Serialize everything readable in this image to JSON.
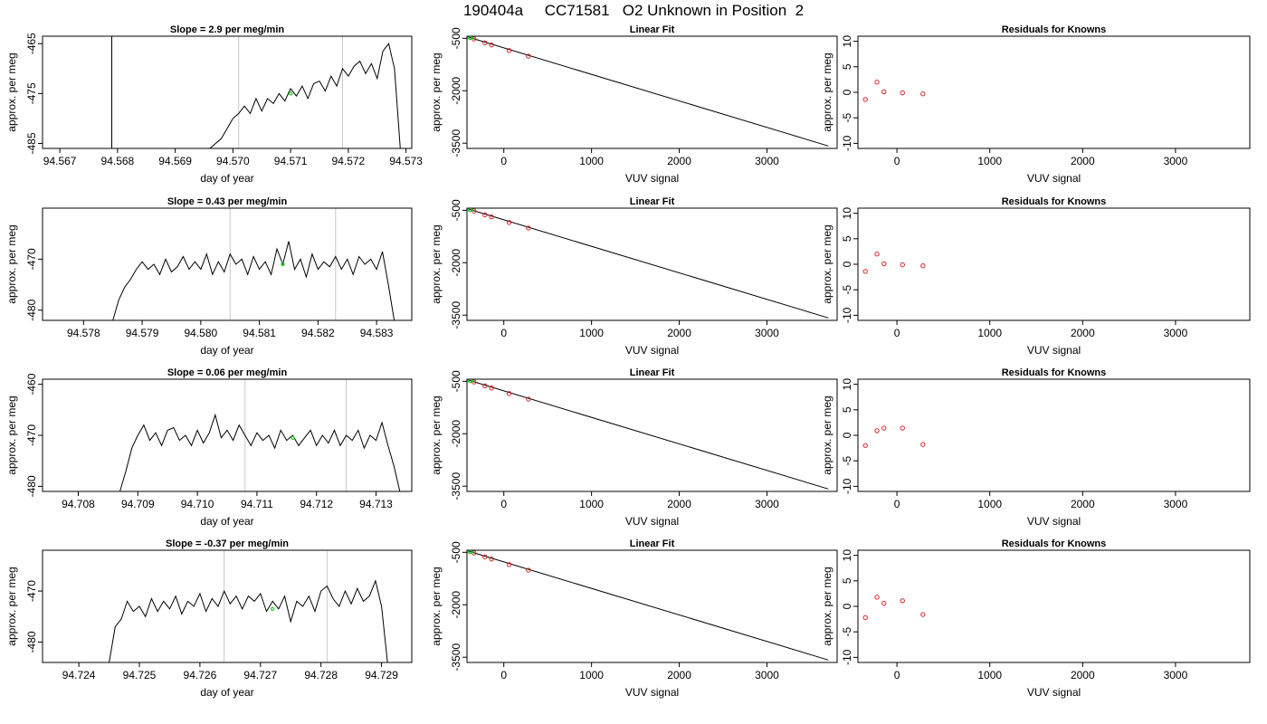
{
  "header": {
    "title": "190404a     CC71581   O2 Unknown in Position  2"
  },
  "chart_data": [
    {
      "type": "line",
      "title": "Slope =  2.9  per meg/min",
      "xlabel": "day of year",
      "ylabel": "approx. per meg",
      "xlim": [
        94.5667,
        94.5731
      ],
      "ylim": [
        -486,
        -463.5
      ],
      "xticks": [
        "94.567",
        "94.568",
        "94.569",
        "94.570",
        "94.571",
        "94.572",
        "94.573"
      ],
      "xtick_values": [
        94.567,
        94.568,
        94.569,
        94.57,
        94.571,
        94.572,
        94.573
      ],
      "yticks": [
        "-465",
        "-475",
        "-485"
      ],
      "ytick_values": [
        -465,
        -475,
        -485
      ],
      "vlines": [
        94.5701,
        94.5719
      ],
      "series": [
        {
          "x": [
            94.5679,
            94.5679
          ],
          "y": [
            -463.5,
            -486
          ]
        },
        {
          "x": [
            94.5696,
            94.5698,
            94.5699,
            94.57,
            94.5701,
            94.5702,
            94.5703,
            94.5704,
            94.5705,
            94.5706,
            94.5707,
            94.5708,
            94.5709,
            94.571,
            94.5711,
            94.5712,
            94.5713,
            94.5714,
            94.5715,
            94.5716,
            94.5717,
            94.5718,
            94.5719,
            94.572,
            94.5721,
            94.5722,
            94.5723,
            94.5724,
            94.5725,
            94.5726,
            94.5727,
            94.5728,
            94.5729
          ],
          "y": [
            -486,
            -484,
            -482,
            -480,
            -479,
            -477.5,
            -479,
            -476,
            -478.5,
            -476,
            -477,
            -475,
            -476.5,
            -474,
            -475.5,
            -473.5,
            -476,
            -473,
            -472.5,
            -474.5,
            -471.5,
            -473.5,
            -470,
            -471.5,
            -469.5,
            -468.5,
            -471,
            -469,
            -472,
            -466.5,
            -465,
            -470,
            -486
          ]
        }
      ],
      "highlight_points": [
        {
          "x": 94.571,
          "y": -475
        }
      ]
    },
    {
      "type": "scatter",
      "title": "Linear Fit",
      "xlabel": "VUV signal",
      "ylabel": "approx. per meg",
      "xlim": [
        -420,
        3800
      ],
      "ylim": [
        -3650,
        -440
      ],
      "xticks": [
        "0",
        "1000",
        "2000",
        "3000"
      ],
      "xtick_values": [
        0,
        1000,
        2000,
        3000
      ],
      "yticks": [
        "-500",
        "-2000",
        "-3500"
      ],
      "ytick_values": [
        -500,
        -2000,
        -3500
      ],
      "fit_line": {
        "x": [
          -400,
          3700
        ],
        "y": [
          -470,
          -3580
        ]
      },
      "known_points": {
        "x": [
          -340,
          -215,
          -140,
          60,
          280
        ],
        "y": [
          -520,
          -630,
          -690,
          -850,
          -1010
        ]
      },
      "unknown_points": {
        "x": [
          -385,
          -375
        ],
        "y": [
          -480,
          -478
        ]
      }
    },
    {
      "type": "scatter",
      "title": "Residuals for Knowns",
      "xlabel": "VUV signal",
      "ylabel": "approx. per meg",
      "xlim": [
        -420,
        3800
      ],
      "ylim": [
        -11,
        11
      ],
      "xticks": [
        "0",
        "1000",
        "2000",
        "3000"
      ],
      "xtick_values": [
        0,
        1000,
        2000,
        3000
      ],
      "yticks": [
        "-10",
        "-5",
        "0",
        "5",
        "10"
      ],
      "ytick_values": [
        -10,
        -5,
        0,
        5,
        10
      ],
      "points": {
        "x": [
          -340,
          -215,
          -140,
          60,
          280
        ],
        "y": [
          -1.4,
          2.0,
          0.1,
          -0.1,
          -0.3
        ]
      }
    },
    {
      "type": "line",
      "title": "Slope =  0.43  per meg/min",
      "xlabel": "day of year",
      "ylabel": "approx. per meg",
      "xlim": [
        94.5773,
        94.5836
      ],
      "ylim": [
        -482,
        -460
      ],
      "xticks": [
        "94.578",
        "94.579",
        "94.580",
        "94.581",
        "94.582",
        "94.583"
      ],
      "xtick_values": [
        94.578,
        94.579,
        94.58,
        94.581,
        94.582,
        94.583
      ],
      "yticks": [
        "-470",
        "-480"
      ],
      "ytick_values": [
        -470,
        -480
      ],
      "vlines": [
        94.5805,
        94.5823
      ],
      "series": [
        {
          "x": [
            94.5785,
            94.5786,
            94.5787,
            94.5788,
            94.5789,
            94.579,
            94.5791,
            94.5792,
            94.5793,
            94.5794,
            94.5795,
            94.5796,
            94.5797,
            94.5798,
            94.5799,
            94.58,
            94.5801,
            94.5802,
            94.5803,
            94.5804,
            94.5805,
            94.5806,
            94.5807,
            94.5808,
            94.5809,
            94.581,
            94.5811,
            94.5812,
            94.5813,
            94.5814,
            94.5815,
            94.5816,
            94.5817,
            94.5818,
            94.5819,
            94.582,
            94.5821,
            94.5822,
            94.5823,
            94.5824,
            94.5825,
            94.5826,
            94.5827,
            94.5828,
            94.5829,
            94.583,
            94.5831,
            94.5832,
            94.5833
          ],
          "y": [
            -482,
            -478,
            -475.5,
            -474,
            -472,
            -470.5,
            -472,
            -471,
            -473,
            -470,
            -472.5,
            -471.5,
            -469.5,
            -472,
            -470.5,
            -472,
            -469,
            -473,
            -470.5,
            -472.5,
            -469,
            -471,
            -470,
            -473,
            -469.5,
            -472,
            -470.5,
            -473,
            -468,
            -471,
            -466.5,
            -472,
            -470,
            -473.5,
            -469,
            -472,
            -470.5,
            -471.5,
            -469.5,
            -472,
            -470,
            -473,
            -469.5,
            -471,
            -470,
            -472,
            -468.5,
            -475,
            -482
          ]
        }
      ],
      "highlight_points": [
        {
          "x": 94.5814,
          "y": -471
        }
      ]
    },
    {
      "type": "scatter",
      "title": "Linear Fit",
      "xlabel": "VUV signal",
      "ylabel": "approx. per meg",
      "xlim": [
        -420,
        3800
      ],
      "ylim": [
        -3650,
        -440
      ],
      "xticks": [
        "0",
        "1000",
        "2000",
        "3000"
      ],
      "xtick_values": [
        0,
        1000,
        2000,
        3000
      ],
      "yticks": [
        "-500",
        "-2000",
        "-3500"
      ],
      "ytick_values": [
        -500,
        -2000,
        -3500
      ],
      "fit_line": {
        "x": [
          -400,
          3700
        ],
        "y": [
          -470,
          -3580
        ]
      },
      "known_points": {
        "x": [
          -340,
          -215,
          -140,
          60,
          280
        ],
        "y": [
          -520,
          -630,
          -690,
          -850,
          -1010
        ]
      },
      "unknown_points": {
        "x": [
          -385,
          -375
        ],
        "y": [
          -480,
          -478
        ]
      }
    },
    {
      "type": "scatter",
      "title": "Residuals for Knowns",
      "xlabel": "VUV signal",
      "ylabel": "approx. per meg",
      "xlim": [
        -420,
        3800
      ],
      "ylim": [
        -11,
        11
      ],
      "xticks": [
        "0",
        "1000",
        "2000",
        "3000"
      ],
      "xtick_values": [
        0,
        1000,
        2000,
        3000
      ],
      "yticks": [
        "-10",
        "-5",
        "0",
        "5",
        "10"
      ],
      "ytick_values": [
        -10,
        -5,
        0,
        5,
        10
      ],
      "points": {
        "x": [
          -340,
          -215,
          -140,
          60,
          280
        ],
        "y": [
          -1.4,
          2.0,
          0.1,
          -0.1,
          -0.3
        ]
      }
    },
    {
      "type": "line",
      "title": "Slope =  0.06  per meg/min",
      "xlabel": "day of year",
      "ylabel": "approx. per meg",
      "xlim": [
        94.7074,
        94.7136
      ],
      "ylim": [
        -481,
        -459
      ],
      "xticks": [
        "94.708",
        "94.709",
        "94.710",
        "94.711",
        "94.712",
        "94.713"
      ],
      "xtick_values": [
        94.708,
        94.709,
        94.71,
        94.711,
        94.712,
        94.713
      ],
      "yticks": [
        "-460",
        "-470",
        "-480"
      ],
      "ytick_values": [
        -460,
        -470,
        -480
      ],
      "vlines": [
        94.7108,
        94.7125
      ],
      "series": [
        {
          "x": [
            94.7087,
            94.7088,
            94.7089,
            94.709,
            94.7091,
            94.7092,
            94.7093,
            94.7094,
            94.7095,
            94.7096,
            94.7097,
            94.7098,
            94.7099,
            94.71,
            94.7101,
            94.7102,
            94.7103,
            94.7104,
            94.7105,
            94.7106,
            94.7107,
            94.7108,
            94.7109,
            94.711,
            94.7111,
            94.7112,
            94.7113,
            94.7114,
            94.7115,
            94.7116,
            94.7117,
            94.7118,
            94.7119,
            94.712,
            94.7121,
            94.7122,
            94.7123,
            94.7124,
            94.7125,
            94.7126,
            94.7127,
            94.7128,
            94.7129,
            94.713,
            94.7131,
            94.7132,
            94.7133,
            94.7134
          ],
          "y": [
            -481,
            -477,
            -472.5,
            -470,
            -468,
            -471,
            -469.5,
            -472,
            -469,
            -468.5,
            -471,
            -470,
            -472,
            -469,
            -471.5,
            -469.5,
            -466,
            -470.5,
            -469,
            -471,
            -468,
            -470,
            -472,
            -469.5,
            -471,
            -470,
            -472.5,
            -469,
            -471,
            -470,
            -472,
            -470.5,
            -469,
            -472,
            -470,
            -471.5,
            -469,
            -472,
            -470,
            -471,
            -469,
            -472.5,
            -470,
            -471,
            -467.5,
            -472,
            -476,
            -481
          ]
        }
      ],
      "highlight_points": [
        {
          "x": 94.7116,
          "y": -470.5
        }
      ]
    },
    {
      "type": "scatter",
      "title": "Linear Fit",
      "xlabel": "VUV signal",
      "ylabel": "approx. per meg",
      "xlim": [
        -420,
        3800
      ],
      "ylim": [
        -3650,
        -440
      ],
      "xticks": [
        "0",
        "1000",
        "2000",
        "3000"
      ],
      "xtick_values": [
        0,
        1000,
        2000,
        3000
      ],
      "yticks": [
        "-500",
        "-2000",
        "-3500"
      ],
      "ytick_values": [
        -500,
        -2000,
        -3500
      ],
      "fit_line": {
        "x": [
          -400,
          3700
        ],
        "y": [
          -470,
          -3580
        ]
      },
      "known_points": {
        "x": [
          -340,
          -215,
          -140,
          60,
          280
        ],
        "y": [
          -520,
          -630,
          -690,
          -850,
          -1010
        ]
      },
      "unknown_points": {
        "x": [
          -385,
          -375
        ],
        "y": [
          -480,
          -478
        ]
      }
    },
    {
      "type": "scatter",
      "title": "Residuals for Knowns",
      "xlabel": "VUV signal",
      "ylabel": "approx. per meg",
      "xlim": [
        -420,
        3800
      ],
      "ylim": [
        -11,
        11
      ],
      "xticks": [
        "0",
        "1000",
        "2000",
        "3000"
      ],
      "xtick_values": [
        0,
        1000,
        2000,
        3000
      ],
      "yticks": [
        "-10",
        "-5",
        "0",
        "5",
        "10"
      ],
      "ytick_values": [
        -10,
        -5,
        0,
        5,
        10
      ],
      "points": {
        "x": [
          -340,
          -215,
          -140,
          60,
          280
        ],
        "y": [
          -2.0,
          0.9,
          1.4,
          1.4,
          -1.8
        ]
      }
    },
    {
      "type": "line",
      "title": "Slope =  -0.37  per meg/min",
      "xlabel": "day of year",
      "ylabel": "approx. per meg",
      "xlim": [
        94.7234,
        94.7295
      ],
      "ylim": [
        -484,
        -462
      ],
      "xticks": [
        "94.724",
        "94.725",
        "94.726",
        "94.727",
        "94.728",
        "94.729"
      ],
      "xtick_values": [
        94.724,
        94.725,
        94.726,
        94.727,
        94.728,
        94.729
      ],
      "yticks": [
        "-470",
        "-480"
      ],
      "ytick_values": [
        -470,
        -480
      ],
      "vlines": [
        94.7264,
        94.7281
      ],
      "series": [
        {
          "x": [
            94.7245,
            94.7246,
            94.7247,
            94.7248,
            94.7249,
            94.725,
            94.7251,
            94.7252,
            94.7253,
            94.7254,
            94.7255,
            94.7256,
            94.7257,
            94.7258,
            94.7259,
            94.726,
            94.7261,
            94.7262,
            94.7263,
            94.7264,
            94.7265,
            94.7266,
            94.7267,
            94.7268,
            94.7269,
            94.727,
            94.7271,
            94.7272,
            94.7273,
            94.7274,
            94.7275,
            94.7276,
            94.7277,
            94.7278,
            94.7279,
            94.728,
            94.7281,
            94.7282,
            94.7283,
            94.7284,
            94.7285,
            94.7286,
            94.7287,
            94.7288,
            94.7289,
            94.729,
            94.7291
          ],
          "y": [
            -484,
            -477,
            -475.5,
            -472,
            -474,
            -473,
            -475,
            -471.5,
            -474,
            -472,
            -473.5,
            -471,
            -474.5,
            -472,
            -473,
            -470.5,
            -474,
            -471.5,
            -473,
            -470,
            -472.5,
            -471,
            -473.5,
            -471,
            -472,
            -470.5,
            -474,
            -472,
            -473.5,
            -471,
            -476,
            -472,
            -473,
            -471,
            -474,
            -470,
            -469,
            -471.5,
            -473,
            -470,
            -472.5,
            -469.5,
            -472,
            -471,
            -468,
            -473,
            -484
          ]
        }
      ],
      "highlight_points": [
        {
          "x": 94.7272,
          "y": -473.5
        }
      ]
    },
    {
      "type": "scatter",
      "title": "Linear Fit",
      "xlabel": "VUV signal",
      "ylabel": "approx. per meg",
      "xlim": [
        -420,
        3800
      ],
      "ylim": [
        -3650,
        -440
      ],
      "xticks": [
        "0",
        "1000",
        "2000",
        "3000"
      ],
      "xtick_values": [
        0,
        1000,
        2000,
        3000
      ],
      "yticks": [
        "-500",
        "-2000",
        "-3500"
      ],
      "ytick_values": [
        -500,
        -2000,
        -3500
      ],
      "fit_line": {
        "x": [
          -400,
          3700
        ],
        "y": [
          -470,
          -3580
        ]
      },
      "known_points": {
        "x": [
          -340,
          -215,
          -140,
          60,
          280
        ],
        "y": [
          -520,
          -630,
          -690,
          -850,
          -1010
        ]
      },
      "unknown_points": {
        "x": [
          -385,
          -375
        ],
        "y": [
          -480,
          -478
        ]
      }
    },
    {
      "type": "scatter",
      "title": "Residuals for Knowns",
      "xlabel": "VUV signal",
      "ylabel": "approx. per meg",
      "xlim": [
        -420,
        3800
      ],
      "ylim": [
        -11,
        11
      ],
      "xticks": [
        "0",
        "1000",
        "2000",
        "3000"
      ],
      "xtick_values": [
        0,
        1000,
        2000,
        3000
      ],
      "yticks": [
        "-10",
        "-5",
        "0",
        "5",
        "10"
      ],
      "ytick_values": [
        -10,
        -5,
        0,
        5,
        10
      ],
      "points": {
        "x": [
          -340,
          -215,
          -140,
          60,
          280
        ],
        "y": [
          -2.2,
          1.8,
          0.6,
          1.1,
          -1.6
        ]
      }
    }
  ],
  "colors": {
    "line": "#000000",
    "vline": "#c8c8c8",
    "known_point": "#d62728",
    "unknown_point": "#22cc22"
  }
}
